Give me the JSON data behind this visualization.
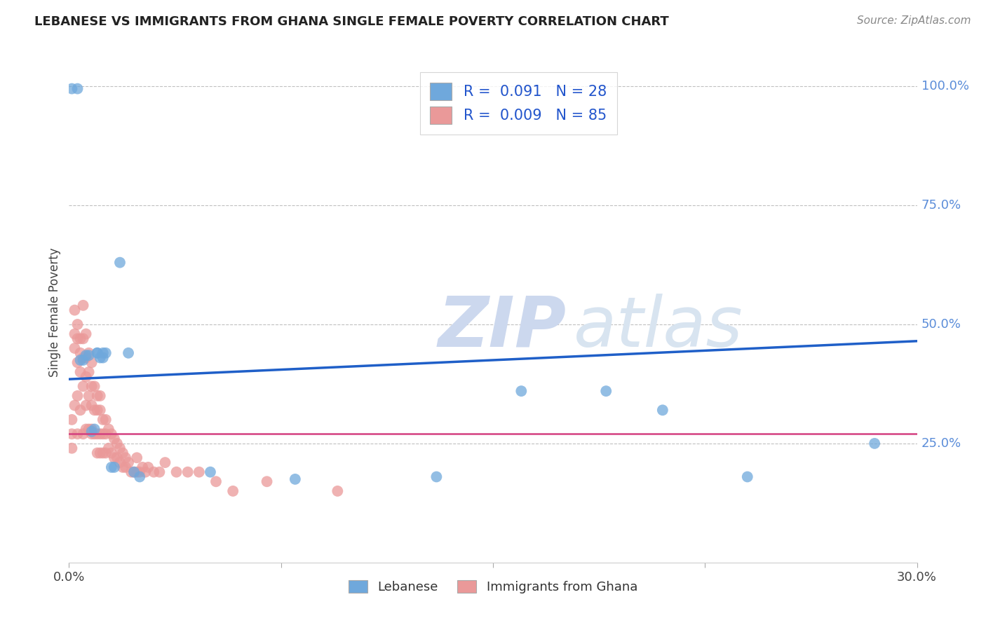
{
  "title": "LEBANESE VS IMMIGRANTS FROM GHANA SINGLE FEMALE POVERTY CORRELATION CHART",
  "source": "Source: ZipAtlas.com",
  "ylabel": "Single Female Poverty",
  "legend1_label": "Lebanese",
  "legend2_label": "Immigrants from Ghana",
  "r1": 0.091,
  "n1": 28,
  "r2": 0.009,
  "n2": 85,
  "color1": "#6fa8dc",
  "color2": "#ea9999",
  "line1_color": "#1f5fc8",
  "line2_color": "#d44080",
  "watermark_zip": "ZIP",
  "watermark_atlas": "atlas",
  "xlim": [
    0.0,
    0.3
  ],
  "ylim": [
    0.0,
    1.05
  ],
  "line1_y0": 0.385,
  "line1_y1": 0.465,
  "line2_y0": 0.27,
  "line2_y1": 0.27,
  "lebanese_x": [
    0.001,
    0.003,
    0.004,
    0.005,
    0.006,
    0.007,
    0.008,
    0.009,
    0.01,
    0.01,
    0.011,
    0.012,
    0.012,
    0.013,
    0.015,
    0.016,
    0.018,
    0.021,
    0.023,
    0.025,
    0.05,
    0.08,
    0.13,
    0.16,
    0.19,
    0.21,
    0.24,
    0.285
  ],
  "lebanese_y": [
    0.995,
    0.995,
    0.425,
    0.425,
    0.435,
    0.435,
    0.275,
    0.28,
    0.44,
    0.44,
    0.43,
    0.43,
    0.44,
    0.44,
    0.2,
    0.2,
    0.63,
    0.44,
    0.19,
    0.18,
    0.19,
    0.175,
    0.18,
    0.36,
    0.36,
    0.32,
    0.18,
    0.25
  ],
  "ghana_x": [
    0.001,
    0.001,
    0.001,
    0.002,
    0.002,
    0.002,
    0.002,
    0.003,
    0.003,
    0.003,
    0.003,
    0.003,
    0.004,
    0.004,
    0.004,
    0.004,
    0.005,
    0.005,
    0.005,
    0.005,
    0.005,
    0.006,
    0.006,
    0.006,
    0.006,
    0.006,
    0.007,
    0.007,
    0.007,
    0.007,
    0.008,
    0.008,
    0.008,
    0.008,
    0.008,
    0.009,
    0.009,
    0.009,
    0.01,
    0.01,
    0.01,
    0.01,
    0.011,
    0.011,
    0.011,
    0.011,
    0.012,
    0.012,
    0.012,
    0.013,
    0.013,
    0.013,
    0.014,
    0.014,
    0.015,
    0.015,
    0.016,
    0.016,
    0.017,
    0.017,
    0.018,
    0.018,
    0.019,
    0.019,
    0.02,
    0.02,
    0.021,
    0.022,
    0.023,
    0.024,
    0.024,
    0.025,
    0.026,
    0.027,
    0.028,
    0.03,
    0.032,
    0.034,
    0.038,
    0.042,
    0.046,
    0.052,
    0.058,
    0.07,
    0.095
  ],
  "ghana_y": [
    0.3,
    0.27,
    0.24,
    0.53,
    0.48,
    0.45,
    0.33,
    0.5,
    0.47,
    0.42,
    0.35,
    0.27,
    0.47,
    0.44,
    0.4,
    0.32,
    0.54,
    0.47,
    0.43,
    0.37,
    0.27,
    0.48,
    0.43,
    0.39,
    0.33,
    0.28,
    0.44,
    0.4,
    0.35,
    0.28,
    0.42,
    0.37,
    0.33,
    0.28,
    0.27,
    0.37,
    0.32,
    0.27,
    0.35,
    0.32,
    0.27,
    0.23,
    0.35,
    0.32,
    0.27,
    0.23,
    0.3,
    0.27,
    0.23,
    0.3,
    0.27,
    0.23,
    0.28,
    0.24,
    0.27,
    0.23,
    0.26,
    0.22,
    0.25,
    0.22,
    0.24,
    0.21,
    0.23,
    0.2,
    0.22,
    0.2,
    0.21,
    0.19,
    0.19,
    0.19,
    0.22,
    0.19,
    0.2,
    0.19,
    0.2,
    0.19,
    0.19,
    0.21,
    0.19,
    0.19,
    0.19,
    0.17,
    0.15,
    0.17,
    0.15
  ]
}
